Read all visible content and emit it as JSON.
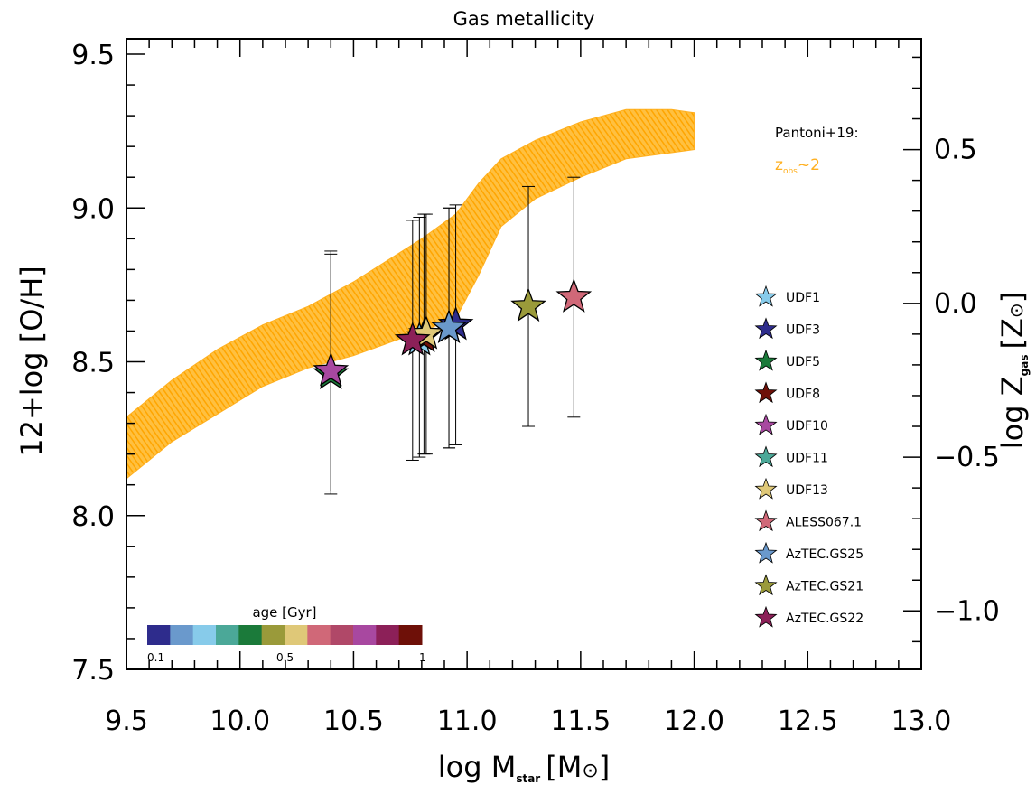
{
  "chart_data": {
    "type": "scatter",
    "title": "Gas metallicity",
    "xlabel": {
      "main": "log M",
      "sub": "star",
      "unit_open": "[M",
      "sun": "⊙",
      "unit_close": "]"
    },
    "ylabel": "12+log [O/H]",
    "y2label": {
      "main": "log Z",
      "sub": "gas",
      "unit_open": "[Z",
      "sun": "⊙",
      "unit_close": "]"
    },
    "xlim": [
      9.5,
      13.0
    ],
    "ylim": [
      7.5,
      9.55
    ],
    "xticks": [
      "9.5",
      "10.0",
      "10.5",
      "11.0",
      "11.5",
      "12.0",
      "12.5",
      "13.0"
    ],
    "yticks": [
      "7.5",
      "8.0",
      "8.5",
      "9.0",
      "9.5"
    ],
    "y2ticks": [
      "0.5",
      "0.0",
      "−0.5",
      "−1.0"
    ],
    "y2_values": [
      0.5,
      0.0,
      -0.5,
      -1.0
    ],
    "y2_offset": 8.69,
    "band": {
      "name": "Pantoni+19 z_obs~2",
      "color": "#FFB020",
      "x": [
        9.5,
        9.7,
        9.9,
        10.1,
        10.3,
        10.5,
        10.65,
        10.8,
        10.95,
        11.05,
        11.15,
        11.3,
        11.5,
        11.7,
        11.9,
        12.0
      ],
      "upper": [
        8.32,
        8.44,
        8.54,
        8.62,
        8.68,
        8.76,
        8.83,
        8.9,
        8.98,
        9.08,
        9.16,
        9.22,
        9.28,
        9.32,
        9.32,
        9.31
      ],
      "lower": [
        8.12,
        8.24,
        8.33,
        8.42,
        8.48,
        8.52,
        8.56,
        8.6,
        8.64,
        8.78,
        8.94,
        9.03,
        9.1,
        9.16,
        9.18,
        9.19
      ]
    },
    "band_note": {
      "label": "Pantoni+19:",
      "z_main": "z",
      "z_sub": "obs",
      "z_rest": "~2",
      "color": "#FFB020"
    },
    "colorbar": {
      "title": "age [Gyr]",
      "colors": [
        "#2E2C8C",
        "#6A99CC",
        "#87CBEA",
        "#4BA898",
        "#1B7A3A",
        "#9A9A3A",
        "#DFC878",
        "#D06878",
        "#B04868",
        "#A848A0",
        "#8C2058",
        "#6E1008"
      ],
      "tick_labels": [
        "0.1",
        "0.5",
        "1"
      ]
    },
    "series": [
      {
        "name": "UDF1",
        "color": "#87CBEA",
        "x": 10.79,
        "y": 8.57,
        "err_low": 8.19,
        "err_high": 8.97
      },
      {
        "name": "UDF3",
        "color": "#2E2C8C",
        "x": 10.95,
        "y": 8.62,
        "err_low": 8.23,
        "err_high": 9.01
      },
      {
        "name": "UDF5",
        "color": "#1B7A3A",
        "x": 10.4,
        "y": 8.46,
        "err_low": 8.07,
        "err_high": 8.85
      },
      {
        "name": "UDF8",
        "color": "#6E1008",
        "x": 10.81,
        "y": 8.58,
        "err_low": 8.2,
        "err_high": 8.98
      },
      {
        "name": "UDF10",
        "color": "#A848A0",
        "x": 10.4,
        "y": 8.47,
        "err_low": 8.08,
        "err_high": 8.86
      },
      {
        "name": "UDF11",
        "color": "#4BA898",
        "x": 10.92,
        "y": 8.61,
        "err_low": 8.22,
        "err_high": 9.0
      },
      {
        "name": "UDF13",
        "color": "#DFC878",
        "x": 10.82,
        "y": 8.59,
        "err_low": 8.2,
        "err_high": 8.98
      },
      {
        "name": "ALESS067.1",
        "color": "#D06878",
        "x": 11.47,
        "y": 8.71,
        "err_low": 8.32,
        "err_high": 9.1
      },
      {
        "name": "AzTEC.GS25",
        "color": "#6A99CC",
        "x": 10.92,
        "y": 8.61,
        "err_low": 8.22,
        "err_high": 9.0
      },
      {
        "name": "AzTEC.GS21",
        "color": "#9A9A3A",
        "x": 11.27,
        "y": 8.68,
        "err_low": 8.29,
        "err_high": 9.07
      },
      {
        "name": "AzTEC.GS22",
        "color": "#8C2058",
        "x": 10.76,
        "y": 8.57,
        "err_low": 8.18,
        "err_high": 8.96
      }
    ]
  }
}
